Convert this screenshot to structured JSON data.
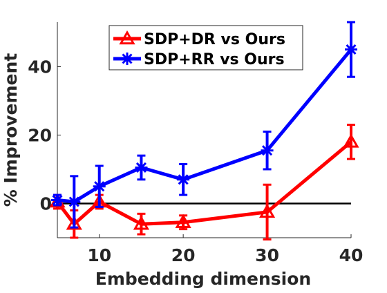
{
  "chart_data": {
    "type": "line",
    "title": "",
    "xlabel": "Embedding dimension",
    "ylabel": "% Improvement",
    "xlim": [
      5,
      40
    ],
    "ylim": [
      -10,
      53
    ],
    "xticks": [
      10,
      20,
      30,
      40
    ],
    "yticks": [
      0,
      20,
      40
    ],
    "grid": false,
    "reference_line": {
      "y": 0,
      "color": "#000000"
    },
    "legend": {
      "position": "top-right"
    },
    "series": [
      {
        "name": "SDP+DR vs Ours",
        "marker": "triangle",
        "color": "#ff0000",
        "x": [
          5,
          7,
          10,
          15,
          20,
          30,
          40
        ],
        "y": [
          0.5,
          -6,
          0.5,
          -6,
          -5.5,
          -2.5,
          18
        ],
        "err_low": [
          2,
          4,
          2,
          3,
          2,
          8,
          5
        ],
        "err_high": [
          2,
          4,
          2,
          3,
          2,
          8,
          5
        ]
      },
      {
        "name": "SDP+RR vs Ours",
        "marker": "asterisk",
        "color": "#0000ff",
        "x": [
          5,
          7,
          10,
          15,
          20,
          30,
          40
        ],
        "y": [
          1,
          0.5,
          5,
          10.5,
          7,
          15.5,
          45
        ],
        "err_low": [
          1.5,
          7.5,
          6,
          3.5,
          4.5,
          5.5,
          8
        ],
        "err_high": [
          1.5,
          7.5,
          6,
          3.5,
          4.5,
          5.5,
          8
        ]
      }
    ]
  }
}
